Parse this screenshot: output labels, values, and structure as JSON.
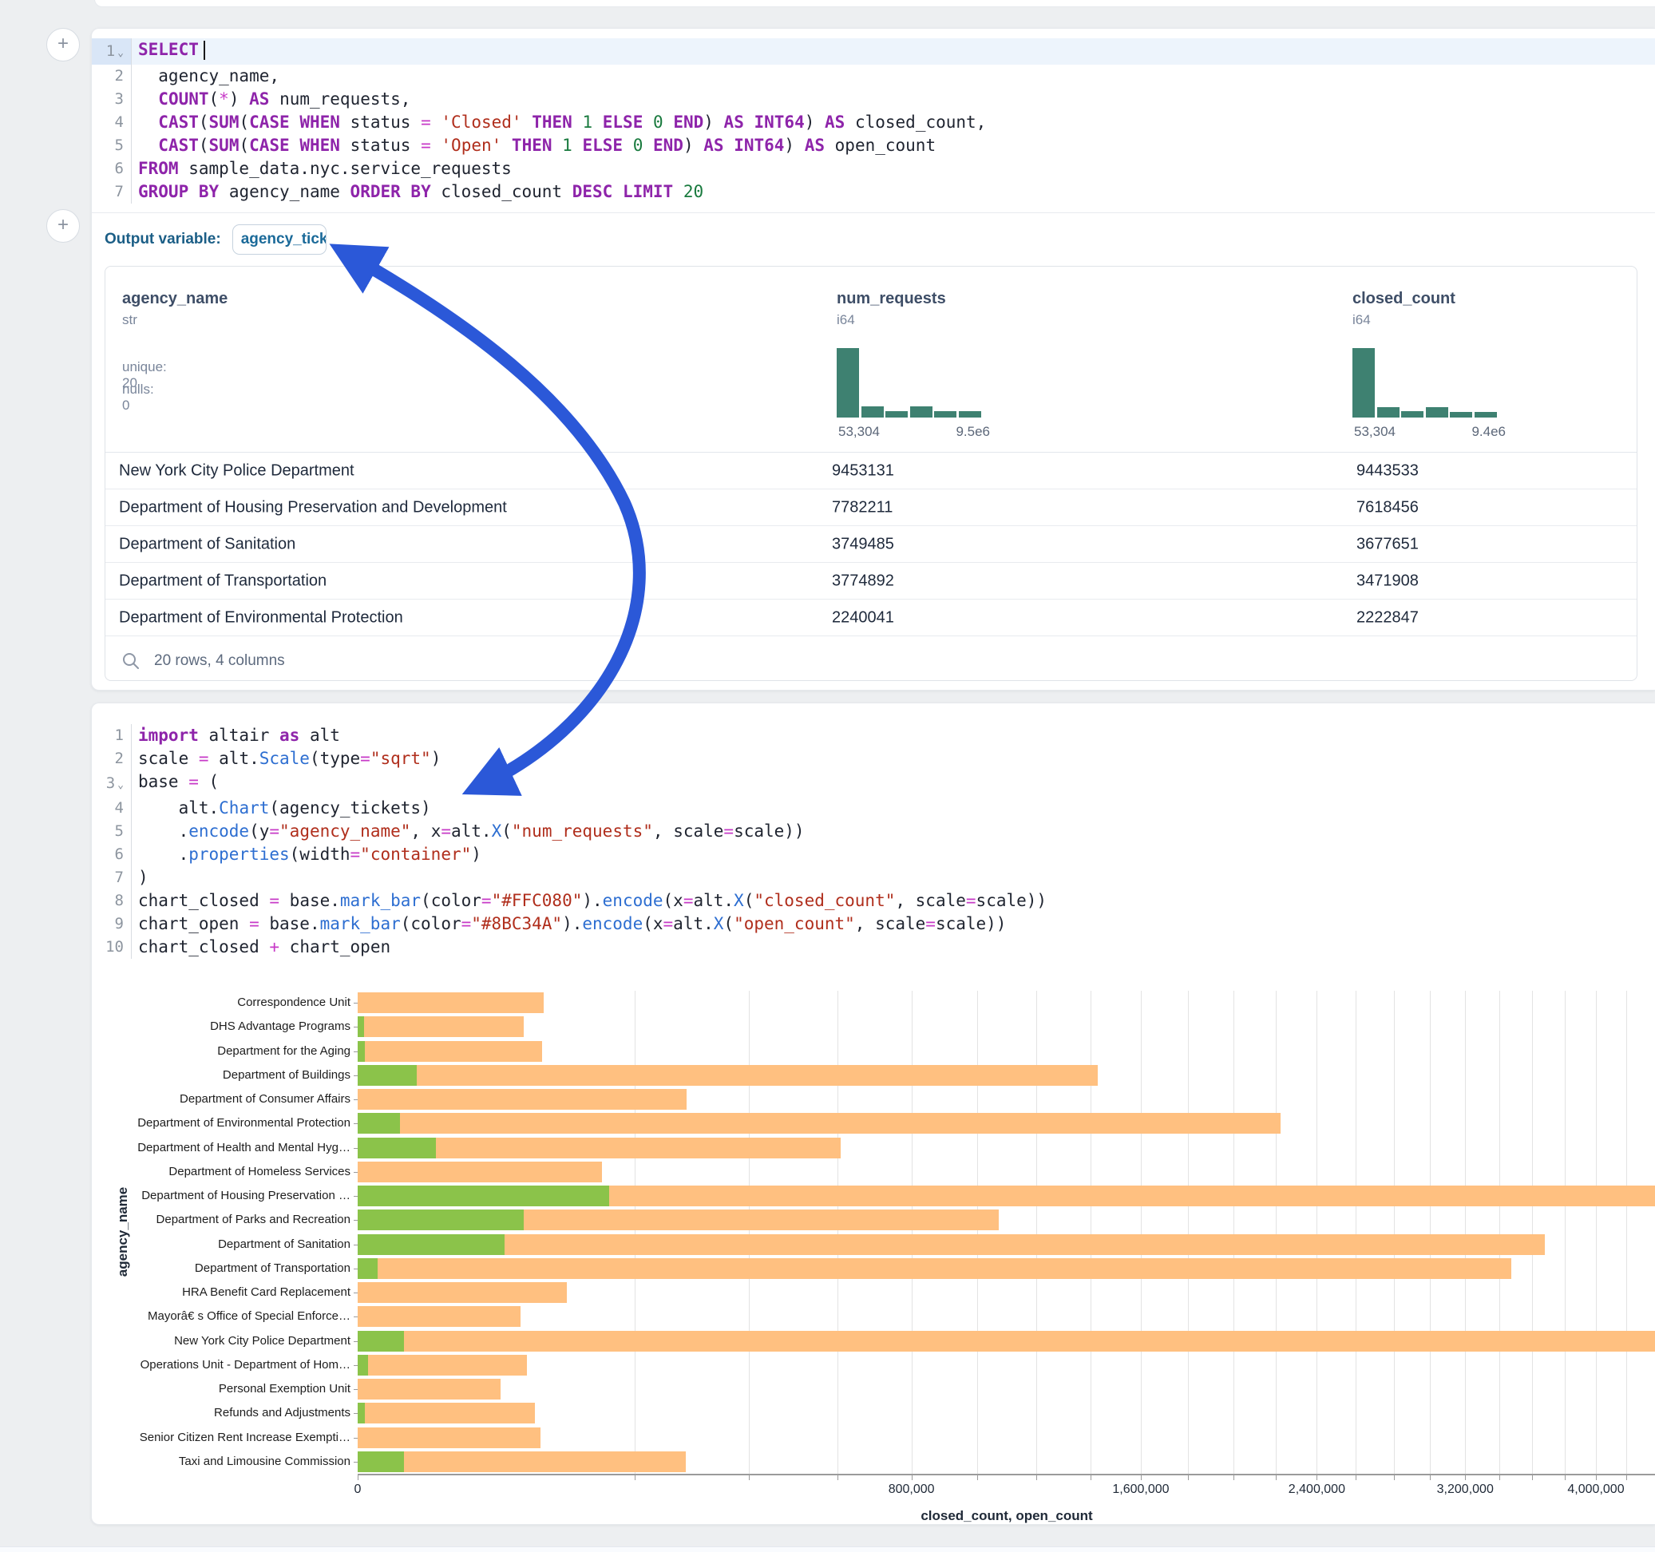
{
  "colors": {
    "arrow": "#2b58d8",
    "bar_closed": "#FFC080",
    "bar_open": "#8BC34A",
    "histogram": "#3e8171"
  },
  "add_cell_button": "+",
  "sql_cell": {
    "lines": [
      {
        "n": "1",
        "chev": true,
        "hl": true,
        "tokens": [
          [
            "kw",
            "SELECT"
          ],
          [
            "caret",
            ""
          ]
        ]
      },
      {
        "n": "2",
        "tokens": [
          [
            "pl",
            "  agency_name,"
          ]
        ]
      },
      {
        "n": "3",
        "tokens": [
          [
            "pl",
            "  "
          ],
          [
            "kw",
            "COUNT"
          ],
          [
            "pl",
            "("
          ],
          [
            "op",
            "*"
          ],
          [
            "pl",
            ") "
          ],
          [
            "kw",
            "AS"
          ],
          [
            "pl",
            " num_requests,"
          ]
        ]
      },
      {
        "n": "4",
        "tokens": [
          [
            "pl",
            "  "
          ],
          [
            "kw",
            "CAST"
          ],
          [
            "pl",
            "("
          ],
          [
            "kw",
            "SUM"
          ],
          [
            "pl",
            "("
          ],
          [
            "kw",
            "CASE"
          ],
          [
            "pl",
            " "
          ],
          [
            "kw",
            "WHEN"
          ],
          [
            "pl",
            " status "
          ],
          [
            "op",
            "="
          ],
          [
            "pl",
            " "
          ],
          [
            "str",
            "'Closed'"
          ],
          [
            "pl",
            " "
          ],
          [
            "kw",
            "THEN"
          ],
          [
            "pl",
            " "
          ],
          [
            "num",
            "1"
          ],
          [
            "pl",
            " "
          ],
          [
            "kw",
            "ELSE"
          ],
          [
            "pl",
            " "
          ],
          [
            "num",
            "0"
          ],
          [
            "pl",
            " "
          ],
          [
            "kw",
            "END"
          ],
          [
            "pl",
            ") "
          ],
          [
            "kw",
            "AS"
          ],
          [
            "pl",
            " "
          ],
          [
            "kw",
            "INT64"
          ],
          [
            "pl",
            ") "
          ],
          [
            "kw",
            "AS"
          ],
          [
            "pl",
            " closed_count,"
          ]
        ]
      },
      {
        "n": "5",
        "tokens": [
          [
            "pl",
            "  "
          ],
          [
            "kw",
            "CAST"
          ],
          [
            "pl",
            "("
          ],
          [
            "kw",
            "SUM"
          ],
          [
            "pl",
            "("
          ],
          [
            "kw",
            "CASE"
          ],
          [
            "pl",
            " "
          ],
          [
            "kw",
            "WHEN"
          ],
          [
            "pl",
            " status "
          ],
          [
            "op",
            "="
          ],
          [
            "pl",
            " "
          ],
          [
            "str",
            "'Open'"
          ],
          [
            "pl",
            " "
          ],
          [
            "kw",
            "THEN"
          ],
          [
            "pl",
            " "
          ],
          [
            "num",
            "1"
          ],
          [
            "pl",
            " "
          ],
          [
            "kw",
            "ELSE"
          ],
          [
            "pl",
            " "
          ],
          [
            "num",
            "0"
          ],
          [
            "pl",
            " "
          ],
          [
            "kw",
            "END"
          ],
          [
            "pl",
            ") "
          ],
          [
            "kw",
            "AS"
          ],
          [
            "pl",
            " "
          ],
          [
            "kw",
            "INT64"
          ],
          [
            "pl",
            ") "
          ],
          [
            "kw",
            "AS"
          ],
          [
            "pl",
            " open_count"
          ]
        ]
      },
      {
        "n": "6",
        "tokens": [
          [
            "kw",
            "FROM"
          ],
          [
            "pl",
            " sample_data.nyc.service_requests"
          ]
        ]
      },
      {
        "n": "7",
        "tokens": [
          [
            "kw",
            "GROUP"
          ],
          [
            "pl",
            " "
          ],
          [
            "kw",
            "BY"
          ],
          [
            "pl",
            " agency_name "
          ],
          [
            "kw",
            "ORDER"
          ],
          [
            "pl",
            " "
          ],
          [
            "kw",
            "BY"
          ],
          [
            "pl",
            " closed_count "
          ],
          [
            "kw",
            "DESC"
          ],
          [
            "pl",
            " "
          ],
          [
            "kw",
            "LIMIT"
          ],
          [
            "pl",
            " "
          ],
          [
            "num",
            "20"
          ]
        ]
      }
    ],
    "output_variable_label": "Output variable:",
    "output_variable_value": "agency_tickets"
  },
  "table": {
    "columns": [
      {
        "name": "agency_name",
        "type": "str",
        "stats": [
          "unique: 20",
          "nulls: 0"
        ]
      },
      {
        "name": "num_requests",
        "type": "i64",
        "hist": {
          "bars": [
            1,
            0.16,
            0.09,
            0.16,
            0.09,
            0.09
          ],
          "min_label": "53,304",
          "max_label": "9.5e6"
        }
      },
      {
        "name": "closed_count",
        "type": "i64",
        "hist": {
          "bars": [
            1,
            0.15,
            0.09,
            0.15,
            0.08,
            0.08
          ],
          "min_label": "53,304",
          "max_label": "9.4e6"
        }
      }
    ],
    "rows": [
      [
        "New York City Police Department",
        "9453131",
        "9443533"
      ],
      [
        "Department of Housing Preservation and Development",
        "7782211",
        "7618456"
      ],
      [
        "Department of Sanitation",
        "3749485",
        "3677651"
      ],
      [
        "Department of Transportation",
        "3774892",
        "3471908"
      ],
      [
        "Department of Environmental Protection",
        "2240041",
        "2222847"
      ]
    ],
    "footer": "20 rows, 4 columns"
  },
  "python_cell": {
    "lines": [
      {
        "n": "1",
        "tokens": [
          [
            "kw",
            "import"
          ],
          [
            "pl",
            " altair "
          ],
          [
            "kw",
            "as"
          ],
          [
            "pl",
            " alt"
          ]
        ]
      },
      {
        "n": "2",
        "tokens": [
          [
            "pl",
            "scale "
          ],
          [
            "op",
            "="
          ],
          [
            "pl",
            " alt."
          ],
          [
            "fn",
            "Scale"
          ],
          [
            "pl",
            "(type"
          ],
          [
            "op",
            "="
          ],
          [
            "str",
            "\"sqrt\""
          ],
          [
            "pl",
            ")"
          ]
        ]
      },
      {
        "n": "3",
        "chev": true,
        "tokens": [
          [
            "pl",
            "base "
          ],
          [
            "op",
            "="
          ],
          [
            "pl",
            " ("
          ]
        ]
      },
      {
        "n": "4",
        "tokens": [
          [
            "pl",
            "    alt."
          ],
          [
            "fn",
            "Chart"
          ],
          [
            "pl",
            "(agency_tickets)"
          ]
        ]
      },
      {
        "n": "5",
        "tokens": [
          [
            "pl",
            "    ."
          ],
          [
            "fn",
            "encode"
          ],
          [
            "pl",
            "(y"
          ],
          [
            "op",
            "="
          ],
          [
            "str",
            "\"agency_name\""
          ],
          [
            "pl",
            ", x"
          ],
          [
            "op",
            "="
          ],
          [
            "pl",
            "alt."
          ],
          [
            "fn",
            "X"
          ],
          [
            "pl",
            "("
          ],
          [
            "str",
            "\"num_requests\""
          ],
          [
            "pl",
            ", scale"
          ],
          [
            "op",
            "="
          ],
          [
            "pl",
            "scale))"
          ]
        ]
      },
      {
        "n": "6",
        "tokens": [
          [
            "pl",
            "    ."
          ],
          [
            "fn",
            "properties"
          ],
          [
            "pl",
            "(width"
          ],
          [
            "op",
            "="
          ],
          [
            "str",
            "\"container\""
          ],
          [
            "pl",
            ")"
          ]
        ]
      },
      {
        "n": "7",
        "tokens": [
          [
            "pl",
            ")"
          ]
        ]
      },
      {
        "n": "8",
        "tokens": [
          [
            "pl",
            "chart_closed "
          ],
          [
            "op",
            "="
          ],
          [
            "pl",
            " base."
          ],
          [
            "fn",
            "mark_bar"
          ],
          [
            "pl",
            "(color"
          ],
          [
            "op",
            "="
          ],
          [
            "str",
            "\"#FFC080\""
          ],
          [
            "pl",
            ")."
          ],
          [
            "fn",
            "encode"
          ],
          [
            "pl",
            "(x"
          ],
          [
            "op",
            "="
          ],
          [
            "pl",
            "alt."
          ],
          [
            "fn",
            "X"
          ],
          [
            "pl",
            "("
          ],
          [
            "str",
            "\"closed_count\""
          ],
          [
            "pl",
            ", scale"
          ],
          [
            "op",
            "="
          ],
          [
            "pl",
            "scale))"
          ]
        ]
      },
      {
        "n": "9",
        "tokens": [
          [
            "pl",
            "chart_open "
          ],
          [
            "op",
            "="
          ],
          [
            "pl",
            " base."
          ],
          [
            "fn",
            "mark_bar"
          ],
          [
            "pl",
            "(color"
          ],
          [
            "op",
            "="
          ],
          [
            "str",
            "\"#8BC34A\""
          ],
          [
            "pl",
            ")."
          ],
          [
            "fn",
            "encode"
          ],
          [
            "pl",
            "(x"
          ],
          [
            "op",
            "="
          ],
          [
            "pl",
            "alt."
          ],
          [
            "fn",
            "X"
          ],
          [
            "pl",
            "("
          ],
          [
            "str",
            "\"open_count\""
          ],
          [
            "pl",
            ", scale"
          ],
          [
            "op",
            "="
          ],
          [
            "pl",
            "scale))"
          ]
        ]
      },
      {
        "n": "10",
        "tokens": [
          [
            "pl",
            "chart_closed "
          ],
          [
            "op",
            "+"
          ],
          [
            "pl",
            " chart_open"
          ]
        ]
      }
    ]
  },
  "chart_data": {
    "type": "bar",
    "orientation": "horizontal",
    "x_scale": "sqrt",
    "xlabel": "closed_count, open_count",
    "ylabel": "agency_name",
    "grid": true,
    "x_minor_tick_step": 200000,
    "x_max_tick": 4400000,
    "x_tick_labels": [
      {
        "v": 0,
        "t": "0"
      },
      {
        "v": 800000,
        "t": "800,000"
      },
      {
        "v": 1600000,
        "t": "1,600,000"
      },
      {
        "v": 2400000,
        "t": "2,400,000"
      },
      {
        "v": 3200000,
        "t": "3,200,000"
      },
      {
        "v": 4000000,
        "t": "4,000,000"
      }
    ],
    "categories": [
      "Correspondence Unit",
      "DHS Advantage Programs",
      "Department for the Aging",
      "Department of Buildings",
      "Department of Consumer Affairs",
      "Department of Environmental Protection",
      "Department of Health and Mental Hyg…",
      "Department of Homeless Services",
      "Department of Housing Preservation …",
      "Department of Parks and Recreation",
      "Department of Sanitation",
      "Department of Transportation",
      "HRA Benefit Card Replacement",
      "Mayorâ€ s Office of Special Enforce…",
      "New York City Police Department",
      "Operations Unit - Department of Hom…",
      "Personal Exemption Unit",
      "Refunds and Adjustments",
      "Senior Citizen Rent Increase Exempti…",
      "Taxi and Limousine Commission"
    ],
    "series": [
      {
        "name": "closed_count",
        "color": "#FFC080",
        "values": [
          90000,
          72000,
          89000,
          1430000,
          282000,
          2222847,
          609000,
          156000,
          7618456,
          1072000,
          3677651,
          3471908,
          114000,
          69000,
          9443533,
          75000,
          53000,
          82000,
          87000,
          281000
        ]
      },
      {
        "name": "open_count",
        "color": "#8BC34A",
        "values": [
          0,
          100,
          150,
          9000,
          0,
          4600,
          16000,
          0,
          165000,
          72000,
          56000,
          1000,
          0,
          0,
          5600,
          300,
          0,
          150,
          0,
          5600
        ]
      }
    ]
  }
}
